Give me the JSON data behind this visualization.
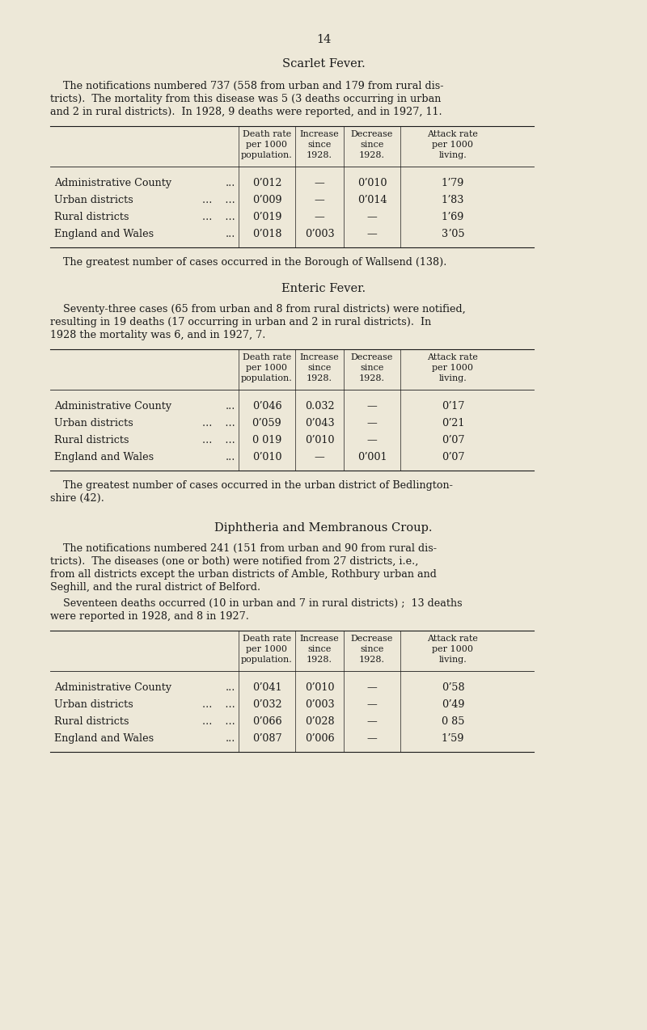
{
  "bg_color": "#ede8d8",
  "text_color": "#1a1a1a",
  "page_number": "14",
  "section1": {
    "title": "Scarlet Fever.",
    "paragraph1": "    The notifications numbered 737 (558 from urban and 179 from rural dis-\ntricts).  The mortality from this disease was 5 (3 deaths occurring in urban\nand 2 in rural districts).  In 1928, 9 deaths were reported, and in 1927, 11.",
    "col_headers": [
      "Death rate\nper 1000\npopulation.",
      "Increase\nsince\n1928.",
      "Decrease\nsince\n1928.",
      "Attack rate\nper 1000\nliving."
    ],
    "rows": [
      [
        "Administrative County",
        "...",
        "0ʼ012",
        "—",
        "0ʼ010",
        "1ʼ79"
      ],
      [
        "Urban districts",
        "...    ...",
        "0ʼ009",
        "—",
        "0ʼ014",
        "1ʼ83"
      ],
      [
        "Rural districts",
        "...    ...",
        "0ʼ019",
        "—",
        "—",
        "1ʼ69"
      ],
      [
        "England and Wales",
        "...",
        "0ʼ018",
        "0ʼ003",
        "—",
        "3ʼ05"
      ]
    ],
    "note": "    The greatest number of cases occurred in the Borough of Wallsend (138)."
  },
  "section2": {
    "title": "Enteric Fever.",
    "paragraph1": "    Seventy-three cases (65 from urban and 8 from rural districts) were notified,\nresulting in 19 deaths (17 occurring in urban and 2 in rural districts).  In\n1928 the mortality was 6, and in 1927, 7.",
    "col_headers": [
      "Death rate\nper 1000\npopulation.",
      "Increase\nsince\n1928.",
      "Decrease\nsince\n1928.",
      "Attack rate\nper 1000\nliving."
    ],
    "rows": [
      [
        "Administrative County",
        "...",
        "0ʼ046",
        "0.032",
        "—",
        "0ʼ17"
      ],
      [
        "Urban districts",
        "...    ...",
        "0ʼ059",
        "0ʼ043",
        "—",
        "0ʼ21"
      ],
      [
        "Rural districts",
        "...    ...",
        "0 019",
        "0ʼ010",
        "—",
        "0ʼ07"
      ],
      [
        "England and Wales",
        "...",
        "0ʼ010",
        "—",
        "0ʼ001",
        "0ʼ07"
      ]
    ],
    "note": "    The greatest number of cases occurred in the urban district of Bedlington-\nshire (42)."
  },
  "section3": {
    "title": "Diphtheria and Membranous Croup.",
    "paragraph1": "    The notifications numbered 241 (151 from urban and 90 from rural dis-\ntricts).  The diseases (one or both) were notified from 27 districts, i.e.,\nfrom all districts except the urban districts of Amble, Rothbury urban and\nSeghill, and the rural district of Belford.",
    "paragraph2": "    Seventeen deaths occurred (10 in urban and 7 in rural districts) ;  13 deaths\nwere reported in 1928, and 8 in 1927.",
    "col_headers": [
      "Death rate\nper 1000\npopulation.",
      "Increase\nsince\n1928.",
      "Decrease\nsince\n1928.",
      "Attack rate\nper 1000\nliving."
    ],
    "rows": [
      [
        "Administrative County",
        "...",
        "0ʼ041",
        "0ʼ010",
        "—",
        "0ʼ58"
      ],
      [
        "Urban districts",
        "...    ...",
        "0ʼ032",
        "0ʼ003",
        "—",
        "0ʼ49"
      ],
      [
        "Rural districts",
        "...    ...",
        "0ʼ066",
        "0ʼ028",
        "—",
        "0 85"
      ],
      [
        "England and Wales",
        "...",
        "0ʼ087",
        "0ʼ006",
        "—",
        "1ʼ59"
      ]
    ]
  },
  "font_size_body": 9.2,
  "font_size_title": 10.5,
  "font_size_page": 10.5,
  "font_size_header": 8.0
}
